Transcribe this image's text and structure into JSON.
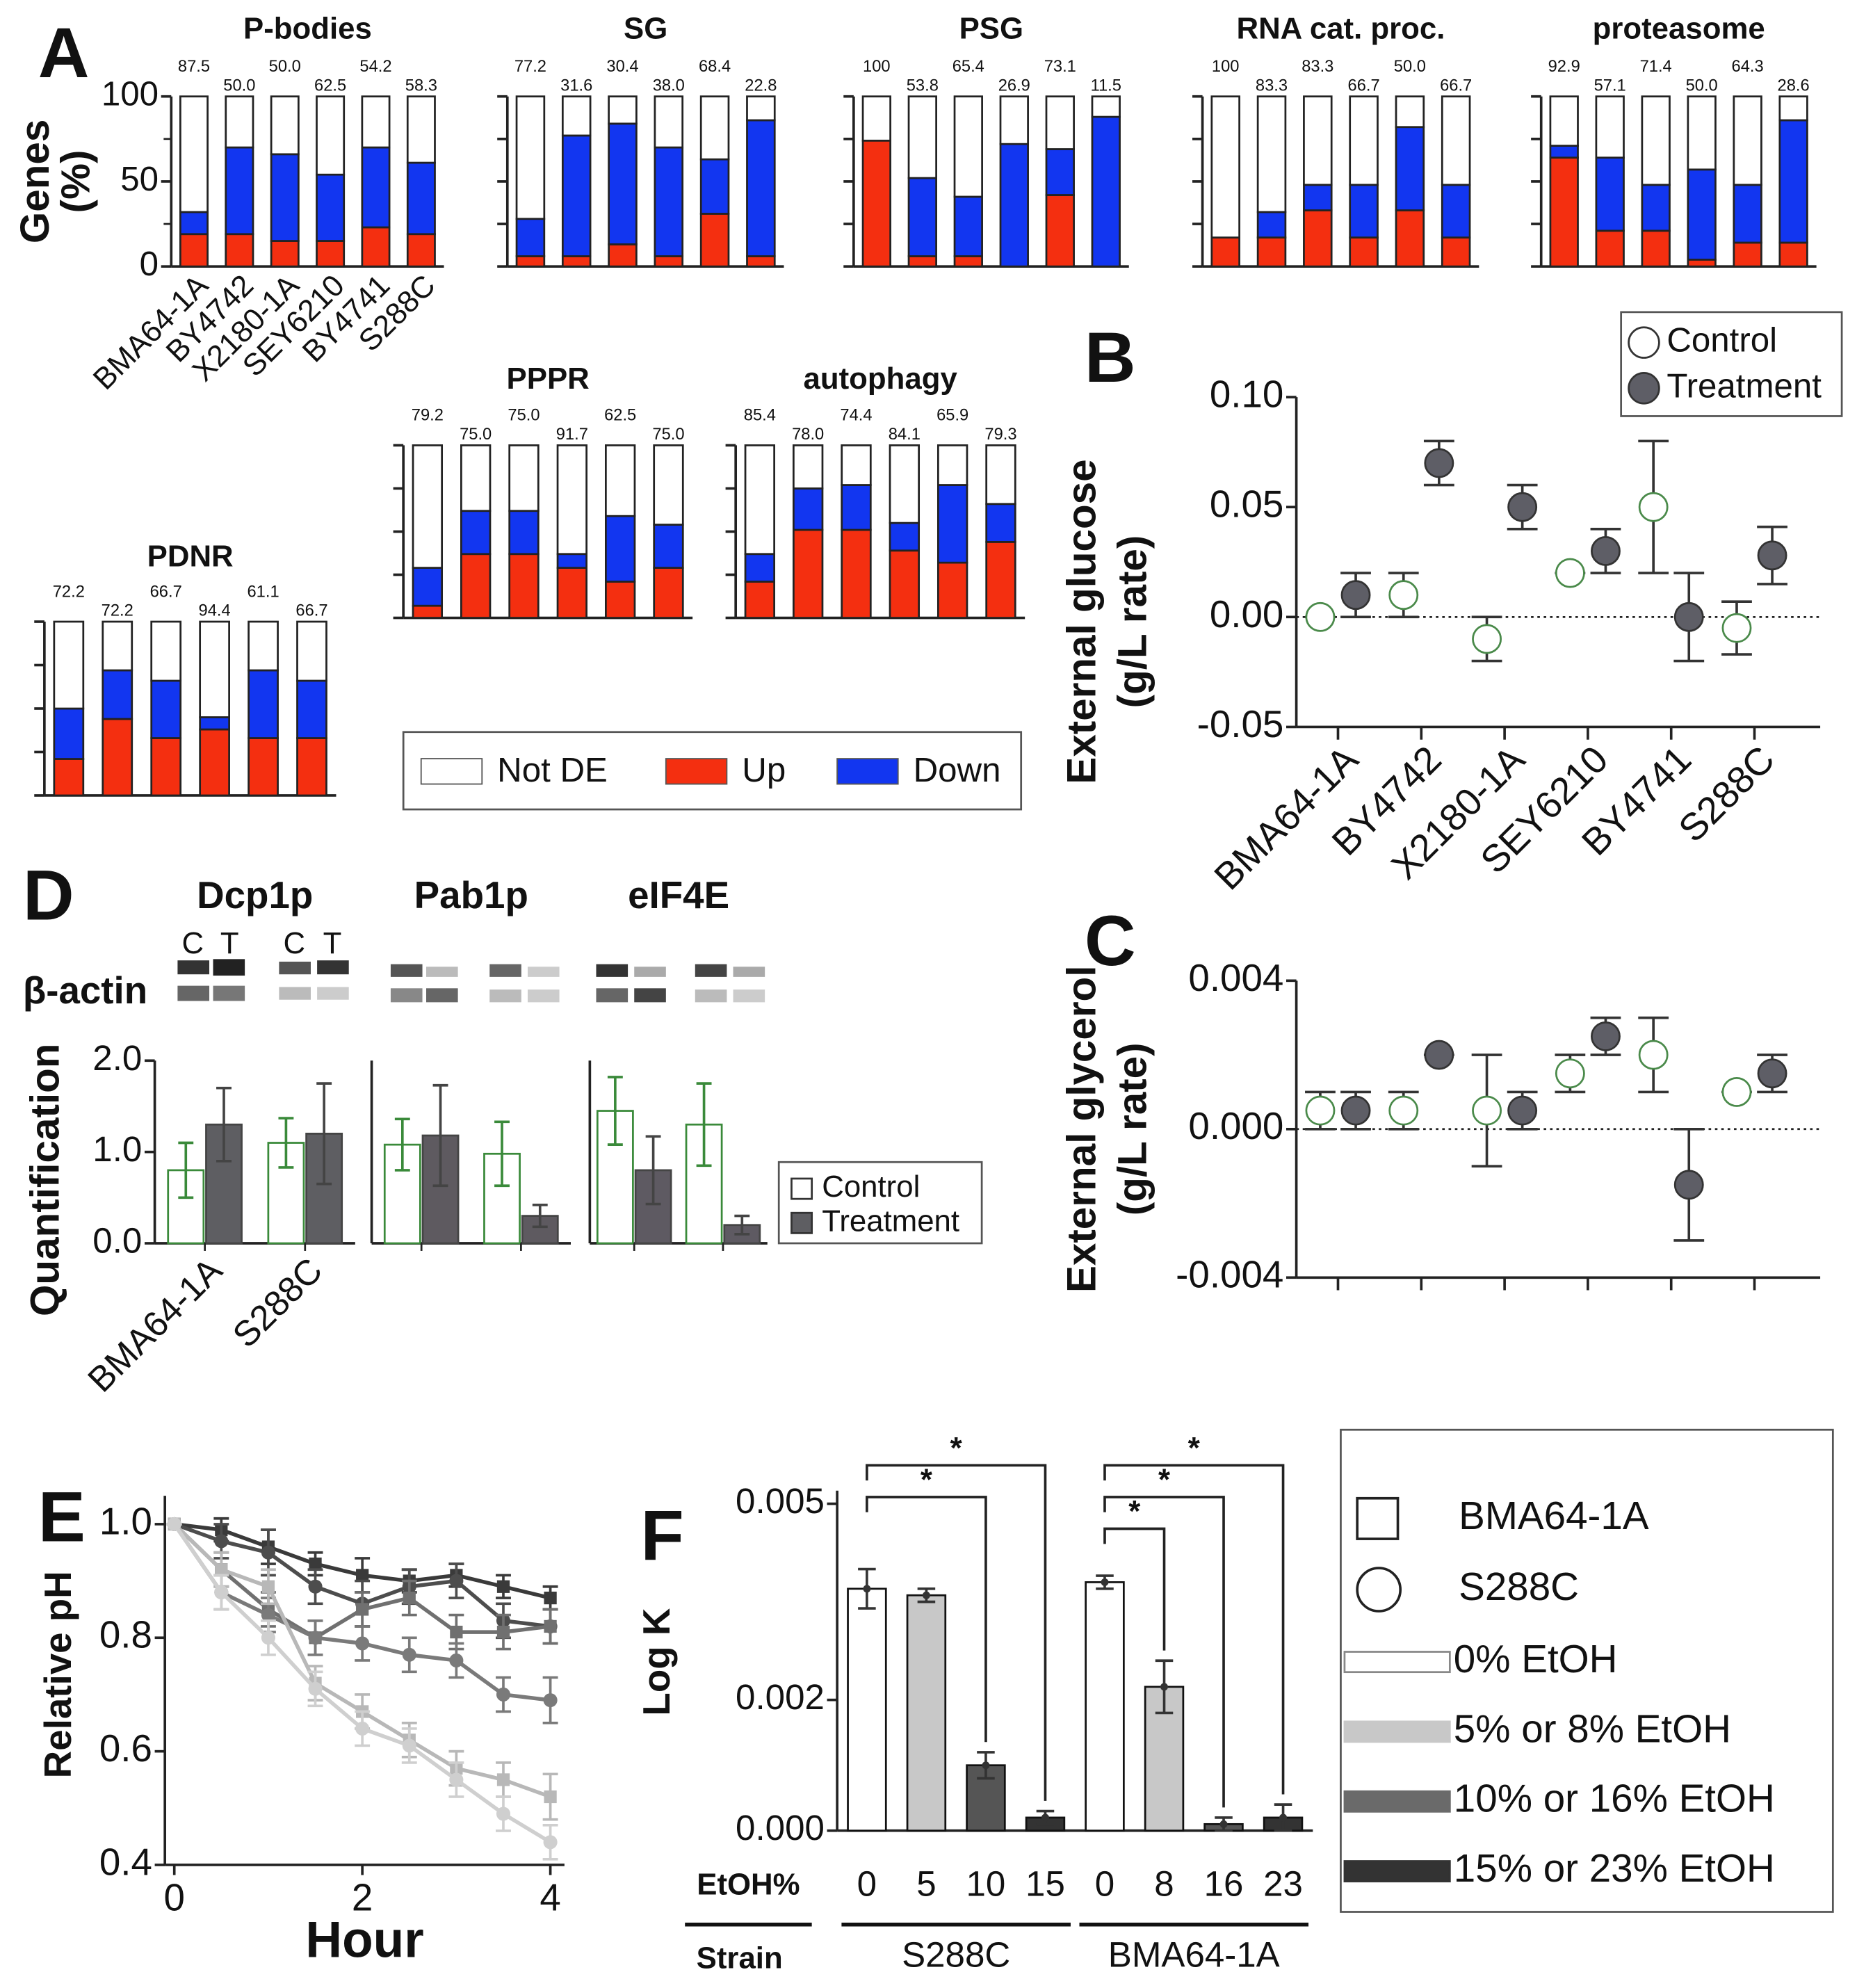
{
  "chart_data": [
    {
      "type": "bar",
      "stacked": true,
      "panel_label": "A",
      "title": "P-bodies",
      "y_label": [
        "Genes",
        "(%)"
      ],
      "categories": [
        "BMA64-1A",
        "BY4742",
        "X2180-1A",
        "SEY6210",
        "BY4741",
        "S288C"
      ],
      "top_labels": [
        "87.5",
        "50.0",
        "50.0",
        "62.5",
        "54.2",
        "58.3"
      ],
      "ylim": [
        0,
        100
      ],
      "yticks": [
        0,
        50,
        100
      ],
      "minor_yticks": [
        25,
        75
      ],
      "legend": "bottom",
      "series": [
        {
          "name": "Up",
          "color": "#f42f10",
          "values": [
            19,
            19,
            15,
            15,
            23,
            19
          ]
        },
        {
          "name": "Down",
          "color": "#1236f0",
          "values": [
            13,
            51,
            51,
            39,
            47,
            42
          ]
        },
        {
          "name": "Not DE",
          "color": "#ffffff",
          "values": [
            68,
            30,
            34,
            46,
            30,
            39
          ]
        }
      ]
    },
    {
      "type": "bar",
      "stacked": true,
      "title": "SG",
      "top_labels": [
        "77.2",
        "31.6",
        "30.4",
        "38.0",
        "68.4",
        "22.8"
      ],
      "ylim": [
        0,
        100
      ],
      "yticks": [
        0,
        25,
        50,
        75,
        100
      ],
      "tick_labels": false,
      "series": [
        {
          "color": "#f42f10",
          "values": [
            6,
            6,
            13,
            6,
            31,
            6
          ]
        },
        {
          "color": "#1236f0",
          "values": [
            22,
            71,
            71,
            64,
            32,
            80
          ]
        },
        {
          "color": "#ffffff",
          "values": [
            72,
            23,
            16,
            30,
            37,
            14
          ]
        }
      ]
    },
    {
      "type": "bar",
      "stacked": true,
      "title": "PSG",
      "top_labels": [
        "100",
        "53.8",
        "65.4",
        "26.9",
        "73.1",
        "11.5"
      ],
      "ylim": [
        0,
        100
      ],
      "yticks": [
        0,
        25,
        50,
        75,
        100
      ],
      "tick_labels": false,
      "series": [
        {
          "color": "#f42f10",
          "values": [
            74,
            6,
            6,
            0,
            42,
            0
          ]
        },
        {
          "color": "#1236f0",
          "values": [
            0,
            46,
            35,
            72,
            27,
            88
          ]
        },
        {
          "color": "#ffffff",
          "values": [
            26,
            48,
            59,
            28,
            31,
            12
          ]
        }
      ]
    },
    {
      "type": "bar",
      "stacked": true,
      "title": "RNA cat. proc.",
      "top_labels": [
        "100",
        "83.3",
        "83.3",
        "66.7",
        "50.0",
        "66.7"
      ],
      "ylim": [
        0,
        100
      ],
      "yticks": [
        0,
        25,
        50,
        75,
        100
      ],
      "tick_labels": false,
      "series": [
        {
          "color": "#f42f10",
          "values": [
            17,
            17,
            33,
            17,
            33,
            17
          ]
        },
        {
          "color": "#1236f0",
          "values": [
            0,
            15,
            15,
            31,
            49,
            31
          ]
        },
        {
          "color": "#ffffff",
          "values": [
            83,
            68,
            52,
            52,
            18,
            52
          ]
        }
      ]
    },
    {
      "type": "bar",
      "stacked": true,
      "title": "proteasome",
      "top_labels": [
        "92.9",
        "57.1",
        "71.4",
        "50.0",
        "64.3",
        "28.6"
      ],
      "ylim": [
        0,
        100
      ],
      "yticks": [
        0,
        25,
        50,
        75,
        100
      ],
      "tick_labels": false,
      "series": [
        {
          "color": "#f42f10",
          "values": [
            64,
            21,
            21,
            4,
            14,
            14
          ]
        },
        {
          "color": "#1236f0",
          "values": [
            7,
            43,
            27,
            53,
            34,
            72
          ]
        },
        {
          "color": "#ffffff",
          "values": [
            29,
            36,
            52,
            43,
            52,
            14
          ]
        }
      ]
    },
    {
      "type": "bar",
      "stacked": true,
      "title": "PPPR",
      "top_labels": [
        "79.2",
        "75.0",
        "75.0",
        "91.7",
        "62.5",
        "75.0"
      ],
      "ylim": [
        0,
        100
      ],
      "yticks": [
        0,
        25,
        50,
        75,
        100
      ],
      "tick_labels": false,
      "series": [
        {
          "color": "#f42f10",
          "values": [
            7,
            37,
            37,
            29,
            21,
            29
          ]
        },
        {
          "color": "#1236f0",
          "values": [
            22,
            25,
            25,
            8,
            38,
            25
          ]
        },
        {
          "color": "#ffffff",
          "values": [
            71,
            38,
            38,
            63,
            41,
            46
          ]
        }
      ]
    },
    {
      "type": "bar",
      "stacked": true,
      "title": "autophagy",
      "top_labels": [
        "85.4",
        "78.0",
        "74.4",
        "84.1",
        "65.9",
        "79.3"
      ],
      "ylim": [
        0,
        100
      ],
      "yticks": [
        0,
        25,
        50,
        75,
        100
      ],
      "tick_labels": false,
      "series": [
        {
          "color": "#f42f10",
          "values": [
            21,
            51,
            51,
            39,
            32,
            44
          ]
        },
        {
          "color": "#1236f0",
          "values": [
            16,
            24,
            26,
            16,
            45,
            22
          ]
        },
        {
          "color": "#ffffff",
          "values": [
            63,
            25,
            23,
            45,
            23,
            34
          ]
        }
      ]
    },
    {
      "type": "bar",
      "stacked": true,
      "title": "PDNR",
      "top_labels": [
        "72.2",
        "72.2",
        "66.7",
        "94.4",
        "61.1",
        "66.7"
      ],
      "ylim": [
        0,
        100
      ],
      "yticks": [
        0,
        25,
        50,
        75,
        100
      ],
      "tick_labels": false,
      "series": [
        {
          "color": "#f42f10",
          "values": [
            21,
            44,
            33,
            38,
            33,
            33
          ]
        },
        {
          "color": "#1236f0",
          "values": [
            29,
            28,
            33,
            7,
            39,
            33
          ]
        },
        {
          "color": "#ffffff",
          "values": [
            50,
            28,
            34,
            55,
            28,
            34
          ]
        }
      ]
    },
    {
      "type": "dot",
      "panel_label": "B",
      "y_label": [
        "External glucose",
        "(g/L rate)"
      ],
      "categories": [
        "BMA64-1A",
        "BY4742",
        "X2180-1A",
        "SEY6210",
        "BY4741",
        "S288C"
      ],
      "ylim": [
        -0.05,
        0.1
      ],
      "yticks": [
        {
          "value": -0.05,
          "label": "-0.05"
        },
        {
          "value": 0,
          "label": "0.00"
        },
        {
          "value": 0.05,
          "label": "0.05"
        },
        {
          "value": 0.1,
          "label": "0.10"
        }
      ],
      "zero_line": true,
      "legend": "upper right",
      "series": [
        {
          "name": "Control",
          "color": "#ffffff",
          "edge": "#4a8a4a",
          "values": [
            0,
            0.01,
            -0.01,
            0.02,
            0.05,
            -0.005
          ],
          "errors": [
            0,
            0.01,
            0.01,
            0,
            0.03,
            0.012
          ]
        },
        {
          "name": "Treatment",
          "color": "#5e5e66",
          "edge": "#333333",
          "values": [
            0.01,
            0.07,
            0.05,
            0.03,
            0,
            0.028
          ],
          "errors": [
            0.01,
            0.01,
            0.01,
            0.01,
            0.02,
            0.013
          ]
        }
      ]
    },
    {
      "type": "dot",
      "panel_label": "C",
      "y_label": [
        "External glycerol",
        "(g/L rate)"
      ],
      "ylim": [
        -0.004,
        0.004
      ],
      "yticks": [
        {
          "value": -0.004,
          "label": "-0.004"
        },
        {
          "value": 0,
          "label": "0.000"
        },
        {
          "value": 0.004,
          "label": "0.004"
        }
      ],
      "zero_line": true,
      "series": [
        {
          "color": "#ffffff",
          "edge": "#4a8a4a",
          "values": [
            0.0005,
            0.0005,
            0.0005,
            0.0015,
            0.002,
            0.001
          ],
          "errors": [
            0.0005,
            0.0005,
            0.0015,
            0.0005,
            0.001,
            0
          ]
        },
        {
          "color": "#5e5e66",
          "edge": "#333333",
          "values": [
            0.0005,
            0.002,
            0.0005,
            0.0025,
            -0.0015,
            0.0015
          ],
          "errors": [
            0.0005,
            0,
            0.0005,
            0.0005,
            0.0015,
            0.0005
          ]
        }
      ]
    },
    {
      "type": "bar",
      "panel_label": "D",
      "title": "Dcp1p",
      "lanes": [
        "C",
        "T",
        "C",
        "T"
      ],
      "loading_control": "β-actin",
      "y_label": [
        "Quantification"
      ],
      "categories": [
        "BMA64-1A",
        "S288C"
      ],
      "ylim": [
        0,
        2
      ],
      "yticks": [
        {
          "value": 0,
          "label": "0.0"
        },
        {
          "value": 1,
          "label": "1.0"
        },
        {
          "value": 2,
          "label": "2.0"
        }
      ],
      "legend": "right",
      "series": [
        {
          "name": "Control",
          "color": "#ffffff",
          "edge": "#3a8a3a",
          "values": [
            0.8,
            1.1
          ],
          "errors": [
            0.3,
            0.27
          ]
        },
        {
          "name": "Treatment",
          "color": "#5e5e62",
          "edge": "#444444",
          "values": [
            1.3,
            1.2
          ],
          "errors": [
            0.4,
            0.55
          ]
        }
      ]
    },
    {
      "type": "bar",
      "title": "Pab1p",
      "ylim": [
        0,
        2
      ],
      "series": [
        {
          "color": "#ffffff",
          "edge": "#3a8a3a",
          "values": [
            1.08,
            0.98
          ],
          "errors": [
            0.28,
            0.35
          ]
        },
        {
          "color": "#5e5a60",
          "edge": "#444444",
          "values": [
            1.18,
            0.3
          ],
          "errors": [
            0.55,
            0.12
          ]
        }
      ]
    },
    {
      "type": "bar",
      "title": "eIF4E",
      "ylim": [
        0,
        2
      ],
      "series": [
        {
          "color": "#ffffff",
          "edge": "#3a8a3a",
          "values": [
            1.45,
            1.3
          ],
          "errors": [
            0.37,
            0.45
          ]
        },
        {
          "color": "#5e5a62",
          "edge": "#444444",
          "values": [
            0.8,
            0.2
          ],
          "errors": [
            0.37,
            0.1
          ]
        }
      ]
    },
    {
      "type": "line",
      "panel_label": "E",
      "x_label": "Hour",
      "y_label": [
        "Relative pH"
      ],
      "x": [
        0,
        0.5,
        1,
        1.5,
        2,
        2.5,
        3,
        3.5,
        4
      ],
      "xlim": [
        -0.1,
        4.15
      ],
      "xticks": [
        0,
        2,
        4
      ],
      "ylim": [
        0.4,
        1.05
      ],
      "yticks": [
        0.4,
        0.6,
        0.8,
        {
          "value": 1,
          "label": "1.0"
        }
      ],
      "series": [
        {
          "color": "#3a3a3a",
          "marker": "square",
          "values": [
            1,
            0.99,
            0.96,
            0.93,
            0.91,
            0.9,
            0.91,
            0.89,
            0.87
          ],
          "errors": [
            0,
            0.02,
            0.03,
            0.02,
            0.03,
            0.02,
            0.02,
            0.02,
            0.02
          ]
        },
        {
          "color": "#4d4d4d",
          "marker": "circle",
          "values": [
            1,
            0.97,
            0.95,
            0.89,
            0.86,
            0.89,
            0.9,
            0.83,
            0.82
          ],
          "errors": [
            0,
            0.03,
            0.04,
            0.03,
            0.04,
            0.03,
            0.03,
            0.03,
            0.03
          ]
        },
        {
          "color": "#707070",
          "marker": "square",
          "values": [
            1,
            0.92,
            0.85,
            0.8,
            0.85,
            0.87,
            0.81,
            0.81,
            0.82
          ],
          "errors": [
            0,
            0.03,
            0.03,
            0.03,
            0.03,
            0.03,
            0.03,
            0.03,
            0.03
          ]
        },
        {
          "color": "#7a7a7a",
          "marker": "circle",
          "values": [
            1,
            0.88,
            0.84,
            0.8,
            0.79,
            0.77,
            0.76,
            0.7,
            0.69
          ],
          "errors": [
            0,
            0.03,
            0.03,
            0.03,
            0.03,
            0.03,
            0.03,
            0.03,
            0.04
          ]
        },
        {
          "color": "#b8b8b8",
          "marker": "square",
          "values": [
            1,
            0.92,
            0.89,
            0.72,
            0.67,
            0.62,
            0.57,
            0.55,
            0.52
          ],
          "errors": [
            0,
            0.03,
            0.03,
            0.03,
            0.03,
            0.03,
            0.03,
            0.03,
            0.04
          ]
        },
        {
          "color": "#cfcfcf",
          "marker": "circle",
          "values": [
            1,
            0.88,
            0.8,
            0.71,
            0.64,
            0.61,
            0.55,
            0.49,
            0.44
          ],
          "errors": [
            0,
            0.03,
            0.03,
            0.03,
            0.03,
            0.03,
            0.03,
            0.03,
            0.03
          ]
        }
      ]
    },
    {
      "type": "bar",
      "panel_label": "F",
      "y_label": [
        "Log K"
      ],
      "categories": [
        "0",
        "5",
        "10",
        "15",
        "0",
        "8",
        "16",
        "23"
      ],
      "groups": [
        "S288C",
        "BMA64-1A"
      ],
      "row_labels": [
        "EtOH%",
        "Strain"
      ],
      "values": [
        0.0037,
        0.0036,
        0.001,
        0.0002,
        0.0038,
        0.0022,
        0.0001,
        0.0002
      ],
      "errors": [
        0.0003,
        0.0001,
        0.0002,
        0.0001,
        0.0001,
        0.0004,
        0.0001,
        0.0002
      ],
      "colors": [
        "#ffffff",
        "#c8c8c8",
        "#555555",
        "#333333",
        "#ffffff",
        "#c8c8c8",
        "#555555",
        "#333333"
      ],
      "ylim": [
        0,
        0.0052
      ],
      "yticks": [
        {
          "value": 0,
          "label": "0.000"
        },
        {
          "value": 0.002,
          "label": "0.002"
        },
        {
          "value": 0.005,
          "label": "0.005"
        }
      ],
      "brackets": [
        {
          "pair": [
            0,
            3
          ],
          "label": "*"
        },
        {
          "pair": [
            0,
            2
          ],
          "label": "*"
        },
        {
          "pair": [
            4,
            7
          ],
          "label": "*"
        },
        {
          "pair": [
            4,
            6
          ],
          "label": "*"
        },
        {
          "pair": [
            4,
            5
          ],
          "label": "*"
        }
      ],
      "legend": [
        {
          "label": "BMA64-1A",
          "marker": "square"
        },
        {
          "label": "S288C",
          "marker": "circle"
        },
        {
          "label": "0% EtOH",
          "color": "#ffffff"
        },
        {
          "label": "5% or 8% EtOH",
          "color": "#c8c8c8"
        },
        {
          "label": "10% or 16% EtOH",
          "color": "#6a6a6a"
        },
        {
          "label": "15% or 23% EtOH",
          "color": "#333333"
        }
      ]
    }
  ]
}
